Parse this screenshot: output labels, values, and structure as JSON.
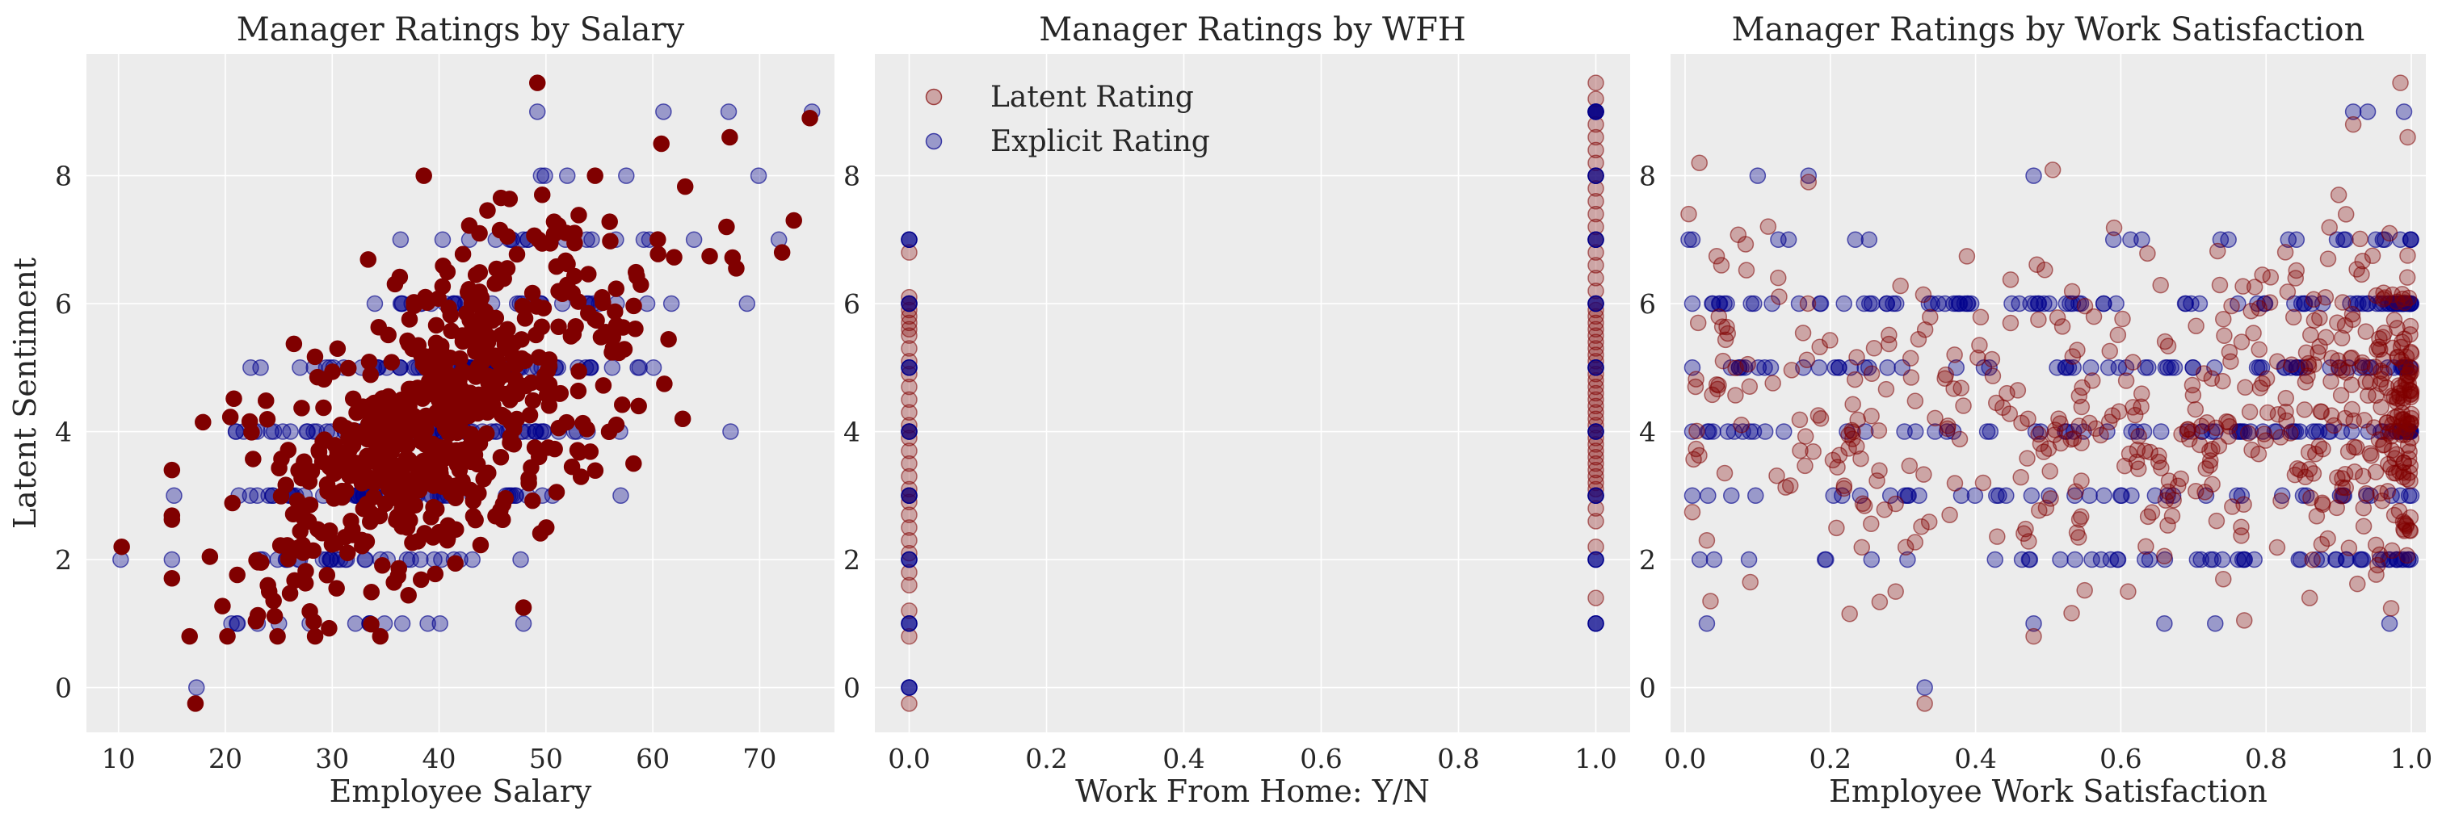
{
  "colors": {
    "latent": "#800000",
    "explicit": "#00008b",
    "axes_bg": "#ececec",
    "grid": "#ffffff",
    "text": "#262626"
  },
  "legend": {
    "placement": "top-left",
    "panel": 1,
    "entries": [
      "Latent Rating",
      "Explicit Rating"
    ]
  },
  "chart_data": [
    {
      "type": "scatter",
      "title": "Manager Ratings by Salary",
      "xlabel": "Employee Salary",
      "ylabel": "Latent Sentiment",
      "xlim": [
        7,
        77
      ],
      "ylim": [
        -0.7,
        9.9
      ],
      "xticks": [
        10,
        20,
        30,
        40,
        50,
        60,
        70
      ],
      "yticks": [
        0,
        2,
        4,
        6,
        8
      ],
      "latent_alpha": 1.0,
      "explicit_alpha": 0.35,
      "generator": {
        "x_range": [
          10,
          75
        ],
        "x_center": 40,
        "x_spread": 9,
        "slope": 0.1,
        "intercept": 0.2,
        "noise": 1.1
      },
      "series": [
        {
          "name": "Latent Rating",
          "x": [
            17.2,
            10.3,
            34.5,
            49.2,
            74.7,
            60.8,
            67.2,
            66.9,
            54.6,
            73.2,
            72.1,
            15.0,
            24.1,
            47.9,
            58.2,
            62.8
          ],
          "y": [
            -0.25,
            2.2,
            0.8,
            9.45,
            8.9,
            8.5,
            8.6,
            7.2,
            8.0,
            7.3,
            6.8,
            3.4,
            1.5,
            1.25,
            3.5,
            4.2
          ]
        },
        {
          "name": "Explicit Rating",
          "x": [
            17.3,
            10.2,
            49.2,
            61.0,
            67.1,
            74.9,
            71.8,
            69.9,
            33.5,
            34.9,
            47.9,
            57.0,
            15.2
          ],
          "y": [
            0,
            2,
            9,
            9,
            9,
            9,
            7,
            8,
            1,
            1,
            1,
            3,
            3
          ]
        }
      ]
    },
    {
      "type": "scatter",
      "title": "Manager Ratings by WFH",
      "xlabel": "Work From Home: Y/N",
      "ylabel": "",
      "xlim": [
        -0.05,
        1.05
      ],
      "ylim": [
        -0.7,
        9.9
      ],
      "xticks": [
        0.0,
        0.2,
        0.4,
        0.6,
        0.8,
        1.0
      ],
      "xtick_labels": [
        "0.0",
        "0.2",
        "0.4",
        "0.6",
        "0.8",
        "1.0"
      ],
      "yticks": [
        0,
        2,
        4,
        6,
        8
      ],
      "latent_alpha": 0.3,
      "explicit_alpha": 0.35,
      "series": [
        {
          "name": "Latent Rating",
          "x": [
            0,
            0,
            0,
            0,
            0,
            0,
            0,
            0,
            0,
            0,
            0,
            0,
            0,
            0,
            0,
            0,
            0,
            0,
            0,
            0,
            0,
            0,
            0,
            0,
            0,
            0,
            0,
            0,
            0,
            0,
            0,
            0,
            1,
            1,
            1,
            1,
            1,
            1,
            1,
            1,
            1,
            1,
            1,
            1,
            1,
            1,
            1,
            1,
            1,
            1,
            1,
            1,
            1,
            1,
            1,
            1,
            1,
            1,
            1,
            1,
            1,
            1,
            1,
            1,
            1,
            1,
            1,
            1,
            1,
            1,
            1,
            1,
            1,
            1,
            1,
            1,
            1,
            1,
            1,
            1,
            1,
            1,
            1,
            1
          ],
          "y": [
            -0.25,
            0.8,
            1.2,
            1.6,
            1.8,
            2.1,
            2.3,
            2.5,
            2.7,
            2.9,
            3.1,
            3.3,
            3.5,
            3.7,
            3.9,
            4.1,
            4.3,
            4.5,
            4.7,
            4.9,
            5.1,
            5.3,
            5.5,
            5.6,
            5.7,
            5.8,
            5.9,
            6.0,
            6.1,
            6.8,
            4.0,
            3.0,
            1.4,
            2.2,
            2.6,
            2.8,
            3.0,
            3.2,
            3.4,
            3.6,
            3.8,
            4.0,
            4.2,
            4.4,
            4.6,
            4.8,
            5.0,
            5.2,
            5.4,
            5.6,
            5.8,
            6.0,
            6.2,
            6.4,
            6.6,
            6.8,
            7.0,
            7.2,
            7.4,
            7.6,
            7.8,
            8.0,
            8.2,
            8.4,
            8.6,
            8.8,
            9.0,
            9.2,
            9.45,
            3.1,
            3.3,
            3.5,
            3.7,
            3.9,
            4.1,
            4.3,
            4.5,
            4.7,
            4.9,
            5.1,
            5.3,
            5.5,
            5.7,
            5.9
          ]
        },
        {
          "name": "Explicit Rating",
          "x": [
            0,
            0,
            0,
            0,
            0,
            0,
            0,
            0,
            1,
            1,
            1,
            1,
            1,
            1,
            1,
            1,
            1,
            1
          ],
          "y": [
            0,
            1,
            2,
            3,
            4,
            5,
            6,
            7,
            1,
            2,
            3,
            4,
            5,
            6,
            7,
            8,
            9,
            9
          ]
        }
      ]
    },
    {
      "type": "scatter",
      "title": "Manager Ratings by Work Satisfaction",
      "xlabel": "Employee Work Satisfaction",
      "ylabel": "",
      "xlim": [
        -0.02,
        1.02
      ],
      "ylim": [
        -0.7,
        9.9
      ],
      "xticks": [
        0.0,
        0.2,
        0.4,
        0.6,
        0.8,
        1.0
      ],
      "xtick_labels": [
        "0.0",
        "0.2",
        "0.4",
        "0.6",
        "0.8",
        "1.0"
      ],
      "yticks": [
        0,
        2,
        4,
        6,
        8
      ],
      "latent_alpha": 0.3,
      "explicit_alpha": 0.35,
      "series": [
        {
          "name": "Latent Rating",
          "x": [
            0.005,
            0.03,
            0.035,
            0.33,
            0.48,
            0.17,
            0.92,
            0.985,
            0.97,
            0.995,
            0.9,
            0.77,
            0.86,
            0.05,
            0.29,
            0.61
          ],
          "y": [
            7.4,
            2.3,
            1.35,
            -0.25,
            0.8,
            7.9,
            8.8,
            9.45,
            7.1,
            8.6,
            7.7,
            1.05,
            1.4,
            6.6,
            1.5,
            1.5
          ]
        },
        {
          "name": "Explicit Rating",
          "x": [
            0.005,
            0.03,
            0.33,
            0.48,
            0.1,
            0.17,
            0.48,
            0.92,
            0.94,
            0.99,
            0.97,
            0.73,
            0.66,
            0.04
          ],
          "y": [
            7,
            1,
            0,
            1,
            8,
            8,
            8,
            9,
            9,
            9,
            1,
            1,
            1,
            2
          ]
        }
      ]
    }
  ]
}
